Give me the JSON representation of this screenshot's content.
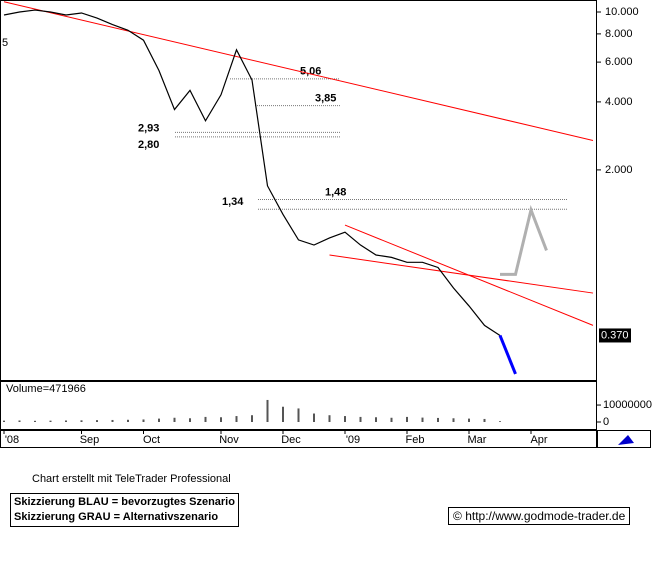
{
  "chart_data": {
    "type": "line",
    "edge_label": "5",
    "categories": [
      "'08",
      null,
      null,
      null,
      null,
      "Sep",
      null,
      null,
      null,
      "Oct",
      null,
      null,
      null,
      null,
      "Nov",
      null,
      null,
      null,
      "Dec",
      null,
      null,
      null,
      "'09",
      null,
      null,
      null,
      "Feb",
      null,
      null,
      null,
      "Mar",
      null,
      null,
      null,
      "Apr",
      null,
      null,
      null,
      null
    ],
    "series": [
      {
        "color": "#000000",
        "values": [
          9.7,
          10,
          10.2,
          10,
          9.7,
          9.9,
          9.4,
          8.8,
          8.3,
          7.5,
          5.5,
          3.7,
          4.5,
          3.3,
          4.3,
          6.8,
          5.0,
          1.7,
          1.27,
          0.98,
          0.93,
          1.0,
          1.06,
          0.93,
          0.84,
          0.82,
          0.78,
          0.78,
          0.74,
          0.6,
          0.5,
          0.41,
          0.37,
          null,
          null,
          null,
          null,
          null,
          null
        ]
      },
      {
        "color": "#0000ff",
        "values": [
          null,
          null,
          null,
          null,
          null,
          null,
          null,
          null,
          null,
          null,
          null,
          null,
          null,
          null,
          null,
          null,
          null,
          null,
          null,
          null,
          null,
          null,
          null,
          null,
          null,
          null,
          null,
          null,
          null,
          null,
          null,
          null,
          0.37,
          0.25,
          null,
          null,
          null,
          null,
          null
        ]
      },
      {
        "color": "#b0b0b0",
        "values": [
          null,
          null,
          null,
          null,
          null,
          null,
          null,
          null,
          null,
          null,
          null,
          null,
          null,
          null,
          null,
          null,
          null,
          null,
          null,
          null,
          null,
          null,
          null,
          null,
          null,
          null,
          null,
          null,
          null,
          null,
          null,
          null,
          0.69,
          0.69,
          1.33,
          0.88,
          null,
          null,
          null
        ]
      }
    ],
    "trendlines": [
      {
        "color": "#ff0000",
        "x": [
          0,
          38
        ],
        "values": [
          11.1,
          2.7
        ]
      },
      {
        "color": "#ff0000",
        "x": [
          22,
          38
        ],
        "values": [
          1.14,
          0.41
        ]
      },
      {
        "color": "#ff0000",
        "x": [
          21,
          38
        ],
        "values": [
          0.84,
          0.57
        ]
      }
    ],
    "levels": [
      {
        "value": 5.06,
        "label": "5,06"
      },
      {
        "value": 3.85,
        "label": "3,85"
      },
      {
        "value": 2.93,
        "label": "2,93"
      },
      {
        "value": 2.8,
        "label": "2,80"
      },
      {
        "value": 1.48,
        "label": "1,48"
      },
      {
        "value": 1.34,
        "label": "1,34"
      }
    ],
    "log_scale": true,
    "ylim": [
      0.235,
      11.3
    ],
    "yticks": [
      {
        "value": 10,
        "label": "10.000"
      },
      {
        "value": 8,
        "label": "8.000"
      },
      {
        "value": 6,
        "label": "6.000"
      },
      {
        "value": 4,
        "label": "4.000"
      },
      {
        "value": 2,
        "label": "2.000"
      }
    ],
    "last_price": {
      "value": 0.37,
      "label": "0.370"
    },
    "volume": {
      "title": "Volume=471966",
      "color": "#555555",
      "ylim": [
        0,
        23000000
      ],
      "yticks": [
        10000000,
        0
      ],
      "values": [
        800000,
        900000,
        700000,
        800000,
        900000,
        1000000,
        1100000,
        1200000,
        1300000,
        1500000,
        2000000,
        2500000,
        2200000,
        3000000,
        2800000,
        3500000,
        4000000,
        13000000,
        9000000,
        8000000,
        5000000,
        4000000,
        3500000,
        3000000,
        2800000,
        2500000,
        3000000,
        2600000,
        2400000,
        2200000,
        2000000,
        1800000,
        471966,
        null,
        null,
        null,
        null,
        null,
        null
      ]
    },
    "footer": {
      "credit": "Chart erstellt mit TeleTrader Professional",
      "legend_blue": "Skizzierung BLAU = bevorzugtes Szenario",
      "legend_gray": "Skizzierung GRAU = Alternativszenario",
      "url": "http://www.godmode-trader.de",
      "copyright": "©"
    }
  }
}
